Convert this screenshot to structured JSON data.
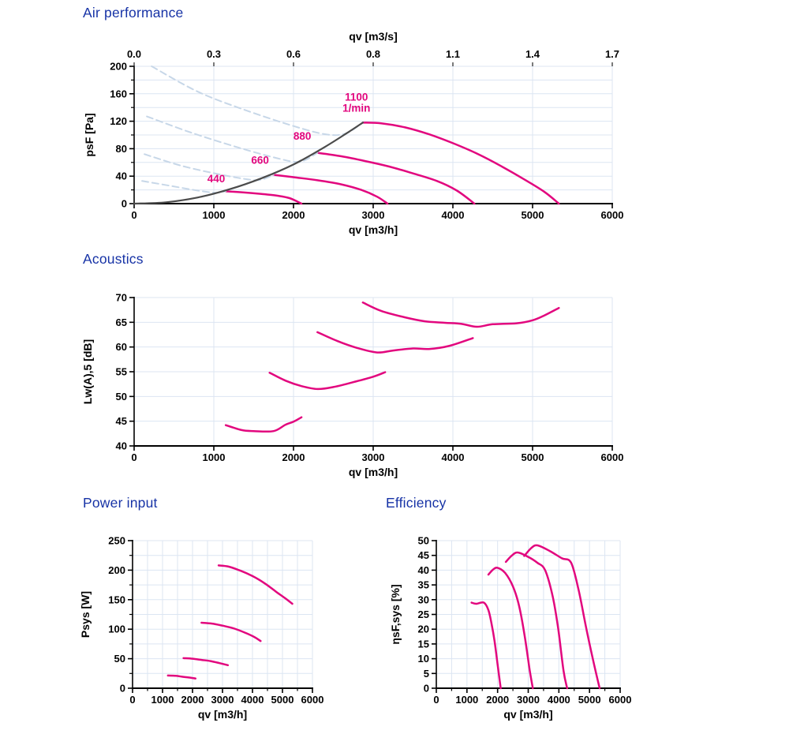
{
  "colors": {
    "heading": "#1733a6",
    "curve": "#e2077e",
    "system": "#4b4b4b",
    "unstable_dashed": "#c7d7e8",
    "grid": "#dce5f2",
    "axis": "#000000",
    "tick_text": "#000000"
  },
  "speed_unit": "1/min",
  "chart_data": [
    {
      "type": "line",
      "title": "Air performance",
      "xlabel": "qv [m3/h]",
      "ylabel": "psF [Pa]",
      "xlim": [
        0,
        6000
      ],
      "ylim": [
        0,
        200
      ],
      "grid": {
        "x": 1000,
        "y": 20
      },
      "xticks": {
        "values": [
          0,
          1000,
          2000,
          3000,
          4000,
          5000,
          6000
        ],
        "labels": [
          "0",
          "1000",
          "2000",
          "3000",
          "4000",
          "5000",
          "6000"
        ]
      },
      "yticks": {
        "values": [
          0,
          40,
          80,
          120,
          160,
          200
        ],
        "labels": [
          "0",
          "40",
          "80",
          "120",
          "160",
          "200"
        ]
      },
      "yminor": 20,
      "top_axis": {
        "label": "qv [m3/s]",
        "values": [
          0,
          1000,
          2000,
          3000,
          4000,
          5000,
          6000
        ],
        "labels": [
          "0.0",
          "0.3",
          "0.6",
          "0.8",
          "1.1",
          "1.4",
          "1.7"
        ]
      },
      "series": [
        {
          "name": "440",
          "role": "fan",
          "points": [
            [
              1150,
              18
            ],
            [
              1350,
              16.5
            ],
            [
              1600,
              14
            ],
            [
              1800,
              11.5
            ],
            [
              1950,
              8
            ],
            [
              2100,
              0
            ]
          ]
        },
        {
          "name": "660",
          "role": "fan",
          "points": [
            [
              1750,
              42
            ],
            [
              2000,
              38.5
            ],
            [
              2300,
              34
            ],
            [
              2600,
              28
            ],
            [
              2850,
              20
            ],
            [
              3050,
              10
            ],
            [
              3180,
              0
            ]
          ]
        },
        {
          "name": "880",
          "role": "fan",
          "points": [
            [
              2300,
              74
            ],
            [
              2600,
              69
            ],
            [
              2900,
              62
            ],
            [
              3200,
              54
            ],
            [
              3500,
              44
            ],
            [
              3800,
              33
            ],
            [
              4050,
              19
            ],
            [
              4270,
              0
            ]
          ]
        },
        {
          "name": "1100",
          "role": "fan",
          "points": [
            [
              2870,
              118
            ],
            [
              3100,
              117
            ],
            [
              3400,
              111
            ],
            [
              3700,
              101
            ],
            [
              4000,
              88
            ],
            [
              4300,
              73
            ],
            [
              4600,
              55
            ],
            [
              4900,
              35
            ],
            [
              5150,
              17
            ],
            [
              5330,
              0
            ]
          ]
        },
        {
          "name": "440-unstable",
          "role": "unstable",
          "points": [
            [
              100,
              33
            ],
            [
              450,
              26
            ],
            [
              800,
              19
            ],
            [
              1020,
              16
            ],
            [
              1150,
              18
            ]
          ]
        },
        {
          "name": "660-unstable",
          "role": "unstable",
          "points": [
            [
              130,
              72
            ],
            [
              600,
              55
            ],
            [
              1100,
              42
            ],
            [
              1450,
              35
            ],
            [
              1600,
              35
            ],
            [
              1750,
              42
            ]
          ]
        },
        {
          "name": "880-unstable",
          "role": "unstable",
          "points": [
            [
              160,
              127
            ],
            [
              700,
              104
            ],
            [
              1300,
              82
            ],
            [
              1800,
              66
            ],
            [
              2080,
              61
            ],
            [
              2300,
              74
            ]
          ]
        },
        {
          "name": "1100-unstable",
          "role": "unstable",
          "points": [
            [
              220,
              200
            ],
            [
              800,
              163
            ],
            [
              1400,
              136
            ],
            [
              2000,
              113
            ],
            [
              2400,
              101
            ],
            [
              2650,
              102
            ],
            [
              2870,
              118
            ]
          ]
        },
        {
          "name": "system-curve",
          "role": "system",
          "points": [
            [
              0,
              0
            ],
            [
              400,
              2
            ],
            [
              800,
              9
            ],
            [
              1200,
              21
            ],
            [
              1600,
              37
            ],
            [
              2000,
              57
            ],
            [
              2400,
              83
            ],
            [
              2700,
              105
            ],
            [
              2870,
              118
            ]
          ]
        }
      ],
      "annotations": [
        {
          "text": "440",
          "x": 1030,
          "y": 31
        },
        {
          "text": "660",
          "x": 1580,
          "y": 58
        },
        {
          "text": "880",
          "x": 2110,
          "y": 93
        },
        {
          "text": "1100",
          "x": 2790,
          "y": 150
        },
        {
          "text": "1/min",
          "x": 2790,
          "y": 134
        }
      ]
    },
    {
      "type": "line",
      "title": "Acoustics",
      "xlabel": "qv [m3/h]",
      "ylabel": "Lw(A),5 [dB]",
      "xlim": [
        0,
        6000
      ],
      "ylim": [
        40,
        70
      ],
      "grid": {
        "x": 1000,
        "y": 5
      },
      "xticks": {
        "values": [
          0,
          1000,
          2000,
          3000,
          4000,
          5000,
          6000
        ],
        "labels": [
          "0",
          "1000",
          "2000",
          "3000",
          "4000",
          "5000",
          "6000"
        ]
      },
      "yticks": {
        "values": [
          40,
          45,
          50,
          55,
          60,
          65,
          70
        ],
        "labels": [
          "40",
          "45",
          "50",
          "55",
          "60",
          "65",
          "70"
        ]
      },
      "series": [
        {
          "name": "440",
          "role": "fan",
          "points": [
            [
              1150,
              44.2
            ],
            [
              1350,
              43.2
            ],
            [
              1500,
              43
            ],
            [
              1750,
              43
            ],
            [
              1900,
              44.3
            ],
            [
              2000,
              44.9
            ],
            [
              2100,
              45.8
            ]
          ]
        },
        {
          "name": "660",
          "role": "fan",
          "points": [
            [
              1700,
              54.8
            ],
            [
              1900,
              53.2
            ],
            [
              2100,
              52.1
            ],
            [
              2300,
              51.5
            ],
            [
              2500,
              51.9
            ],
            [
              2750,
              52.9
            ],
            [
              3000,
              54
            ],
            [
              3150,
              54.9
            ]
          ]
        },
        {
          "name": "880",
          "role": "fan",
          "points": [
            [
              2300,
              63
            ],
            [
              2550,
              61.2
            ],
            [
              2800,
              59.8
            ],
            [
              3050,
              58.9
            ],
            [
              3250,
              59.3
            ],
            [
              3500,
              59.7
            ],
            [
              3700,
              59.6
            ],
            [
              3950,
              60.2
            ],
            [
              4250,
              61.8
            ]
          ]
        },
        {
          "name": "1100",
          "role": "fan",
          "points": [
            [
              2870,
              69
            ],
            [
              3100,
              67.3
            ],
            [
              3400,
              66
            ],
            [
              3650,
              65.2
            ],
            [
              3900,
              64.9
            ],
            [
              4100,
              64.7
            ],
            [
              4300,
              64.1
            ],
            [
              4500,
              64.6
            ],
            [
              4800,
              64.8
            ],
            [
              5000,
              65.4
            ],
            [
              5150,
              66.4
            ],
            [
              5330,
              67.9
            ]
          ]
        }
      ],
      "annotations": []
    },
    {
      "type": "line",
      "title": "Power input",
      "xlabel": "qv [m3/h]",
      "ylabel": "Psys [W]",
      "xlim": [
        0,
        6000
      ],
      "ylim": [
        0,
        250
      ],
      "grid": {
        "x": 500,
        "y": 25
      },
      "xticks": {
        "values": [
          0,
          1000,
          2000,
          3000,
          4000,
          5000,
          6000
        ],
        "labels": [
          "0",
          "1000",
          "2000",
          "3000",
          "4000",
          "5000",
          "6000"
        ]
      },
      "xminor": 500,
      "yticks": {
        "values": [
          0,
          50,
          100,
          150,
          200,
          250
        ],
        "labels": [
          "0",
          "50",
          "100",
          "150",
          "200",
          "250"
        ]
      },
      "yminor": 25,
      "series": [
        {
          "name": "440",
          "role": "fan",
          "points": [
            [
              1180,
              21.5
            ],
            [
              1450,
              21
            ],
            [
              1650,
              19.5
            ],
            [
              1900,
              18
            ],
            [
              2100,
              16.5
            ]
          ]
        },
        {
          "name": "660",
          "role": "fan",
          "points": [
            [
              1700,
              51
            ],
            [
              2000,
              50
            ],
            [
              2300,
              48
            ],
            [
              2600,
              46
            ],
            [
              2900,
              42.5
            ],
            [
              3180,
              39
            ]
          ]
        },
        {
          "name": "880",
          "role": "fan",
          "points": [
            [
              2300,
              111
            ],
            [
              2650,
              109.5
            ],
            [
              3000,
              106
            ],
            [
              3400,
              101
            ],
            [
              3800,
              93
            ],
            [
              4050,
              87
            ],
            [
              4270,
              80
            ]
          ]
        },
        {
          "name": "1100",
          "role": "fan",
          "points": [
            [
              2870,
              208
            ],
            [
              3200,
              206
            ],
            [
              3600,
              199
            ],
            [
              4000,
              190
            ],
            [
              4400,
              178
            ],
            [
              4800,
              163
            ],
            [
              5100,
              152
            ],
            [
              5330,
              143
            ]
          ]
        }
      ],
      "annotations": []
    },
    {
      "type": "line",
      "title": "Efficiency",
      "xlabel": "qv [m3/h]",
      "ylabel": "ηsF,sys [%]",
      "xlim": [
        0,
        6000
      ],
      "ylim": [
        0,
        50
      ],
      "grid": {
        "x": 500,
        "y": 5
      },
      "xticks": {
        "values": [
          0,
          1000,
          2000,
          3000,
          4000,
          5000,
          6000
        ],
        "labels": [
          "0",
          "1000",
          "2000",
          "3000",
          "4000",
          "5000",
          "6000"
        ]
      },
      "xminor": 500,
      "yticks": {
        "values": [
          0,
          5,
          10,
          15,
          20,
          25,
          30,
          35,
          40,
          45,
          50
        ],
        "labels": [
          "0",
          "5",
          "10",
          "15",
          "20",
          "25",
          "30",
          "35",
          "40",
          "45",
          "50"
        ]
      },
      "series": [
        {
          "name": "440",
          "role": "fan",
          "points": [
            [
              1150,
              29
            ],
            [
              1300,
              28.6
            ],
            [
              1550,
              29
            ],
            [
              1700,
              26.5
            ],
            [
              1800,
              22
            ],
            [
              1900,
              16
            ],
            [
              2000,
              8
            ],
            [
              2100,
              0
            ]
          ]
        },
        {
          "name": "660",
          "role": "fan",
          "points": [
            [
              1700,
              38.5
            ],
            [
              1850,
              40.2
            ],
            [
              2000,
              40.8
            ],
            [
              2250,
              39
            ],
            [
              2500,
              34.5
            ],
            [
              2700,
              28
            ],
            [
              2880,
              18
            ],
            [
              3050,
              6
            ],
            [
              3150,
              0
            ]
          ]
        },
        {
          "name": "880",
          "role": "fan",
          "points": [
            [
              2270,
              42.8
            ],
            [
              2450,
              44.8
            ],
            [
              2650,
              46
            ],
            [
              3000,
              44.5
            ],
            [
              3300,
              42.5
            ],
            [
              3550,
              40
            ],
            [
              3800,
              31
            ],
            [
              3980,
              20
            ],
            [
              4150,
              6
            ],
            [
              4270,
              0
            ]
          ]
        },
        {
          "name": "1100",
          "role": "fan",
          "points": [
            [
              2870,
              44.8
            ],
            [
              3100,
              47.5
            ],
            [
              3300,
              48.4
            ],
            [
              3700,
              46.5
            ],
            [
              4100,
              44
            ],
            [
              4400,
              42.5
            ],
            [
              4650,
              33
            ],
            [
              4900,
              20
            ],
            [
              5150,
              8
            ],
            [
              5330,
              0
            ]
          ]
        }
      ],
      "annotations": []
    }
  ]
}
